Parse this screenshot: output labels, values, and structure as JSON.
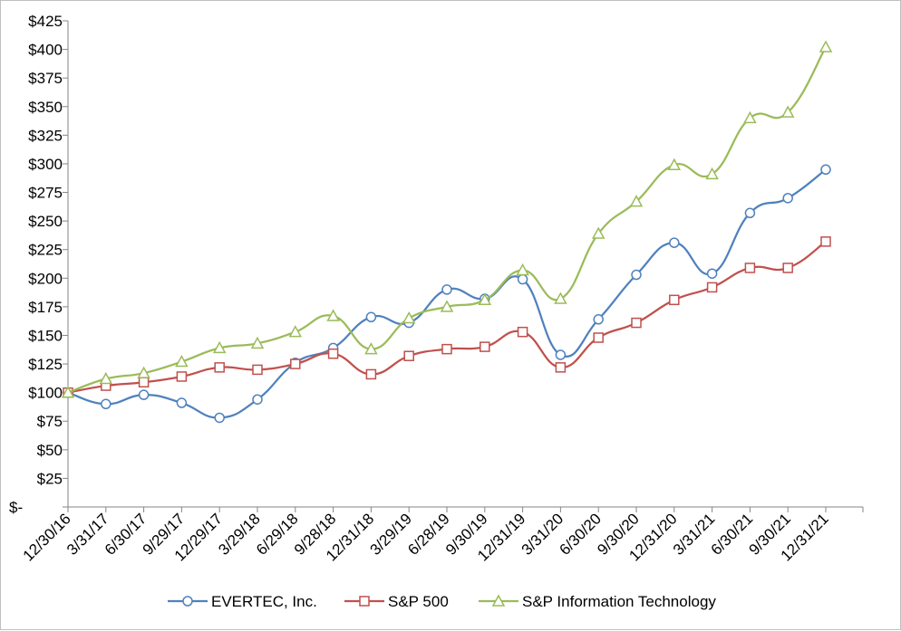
{
  "chart_data": {
    "type": "line",
    "title": "",
    "xlabel": "",
    "ylabel": "",
    "categories": [
      "12/30/16",
      "3/31/17",
      "6/30/17",
      "9/29/17",
      "12/29/17",
      "3/29/18",
      "6/29/18",
      "9/28/18",
      "12/31/18",
      "3/29/19",
      "6/28/19",
      "9/30/19",
      "12/31/19",
      "3/31/20",
      "6/30/20",
      "9/30/20",
      "12/31/20",
      "3/31/21",
      "6/30/21",
      "9/30/21",
      "12/31/21"
    ],
    "ylim": [
      0,
      425
    ],
    "y_ticks": [
      0,
      25,
      50,
      75,
      100,
      125,
      150,
      175,
      200,
      225,
      250,
      275,
      300,
      325,
      350,
      375,
      400,
      425
    ],
    "y_tick_labels": [
      "$-",
      "$25",
      "$50",
      "$75",
      "$100",
      "$125",
      "$150",
      "$175",
      "$200",
      "$225",
      "$250",
      "$275",
      "$300",
      "$325",
      "$350",
      "$375",
      "$400",
      "$425"
    ],
    "grid": false,
    "legend_position": "bottom",
    "series": [
      {
        "name": "EVERTEC, Inc.",
        "color": "#4f81bd",
        "marker": "circle",
        "values": [
          100,
          90,
          98,
          91,
          78,
          94,
          126,
          139,
          166,
          161,
          190,
          182,
          199,
          133,
          164,
          203,
          231,
          204,
          257,
          270,
          295
        ]
      },
      {
        "name": "S&P 500",
        "color": "#c0504d",
        "marker": "square",
        "values": [
          100,
          106,
          109,
          114,
          122,
          120,
          125,
          134,
          116,
          132,
          138,
          140,
          153,
          122,
          148,
          161,
          181,
          192,
          209,
          209,
          232
        ]
      },
      {
        "name": "S&P Information Technology",
        "color": "#9bbb59",
        "marker": "triangle",
        "values": [
          100,
          112,
          117,
          127,
          139,
          143,
          153,
          167,
          138,
          165,
          175,
          181,
          207,
          182,
          239,
          267,
          299,
          291,
          340,
          345,
          402
        ]
      }
    ]
  }
}
